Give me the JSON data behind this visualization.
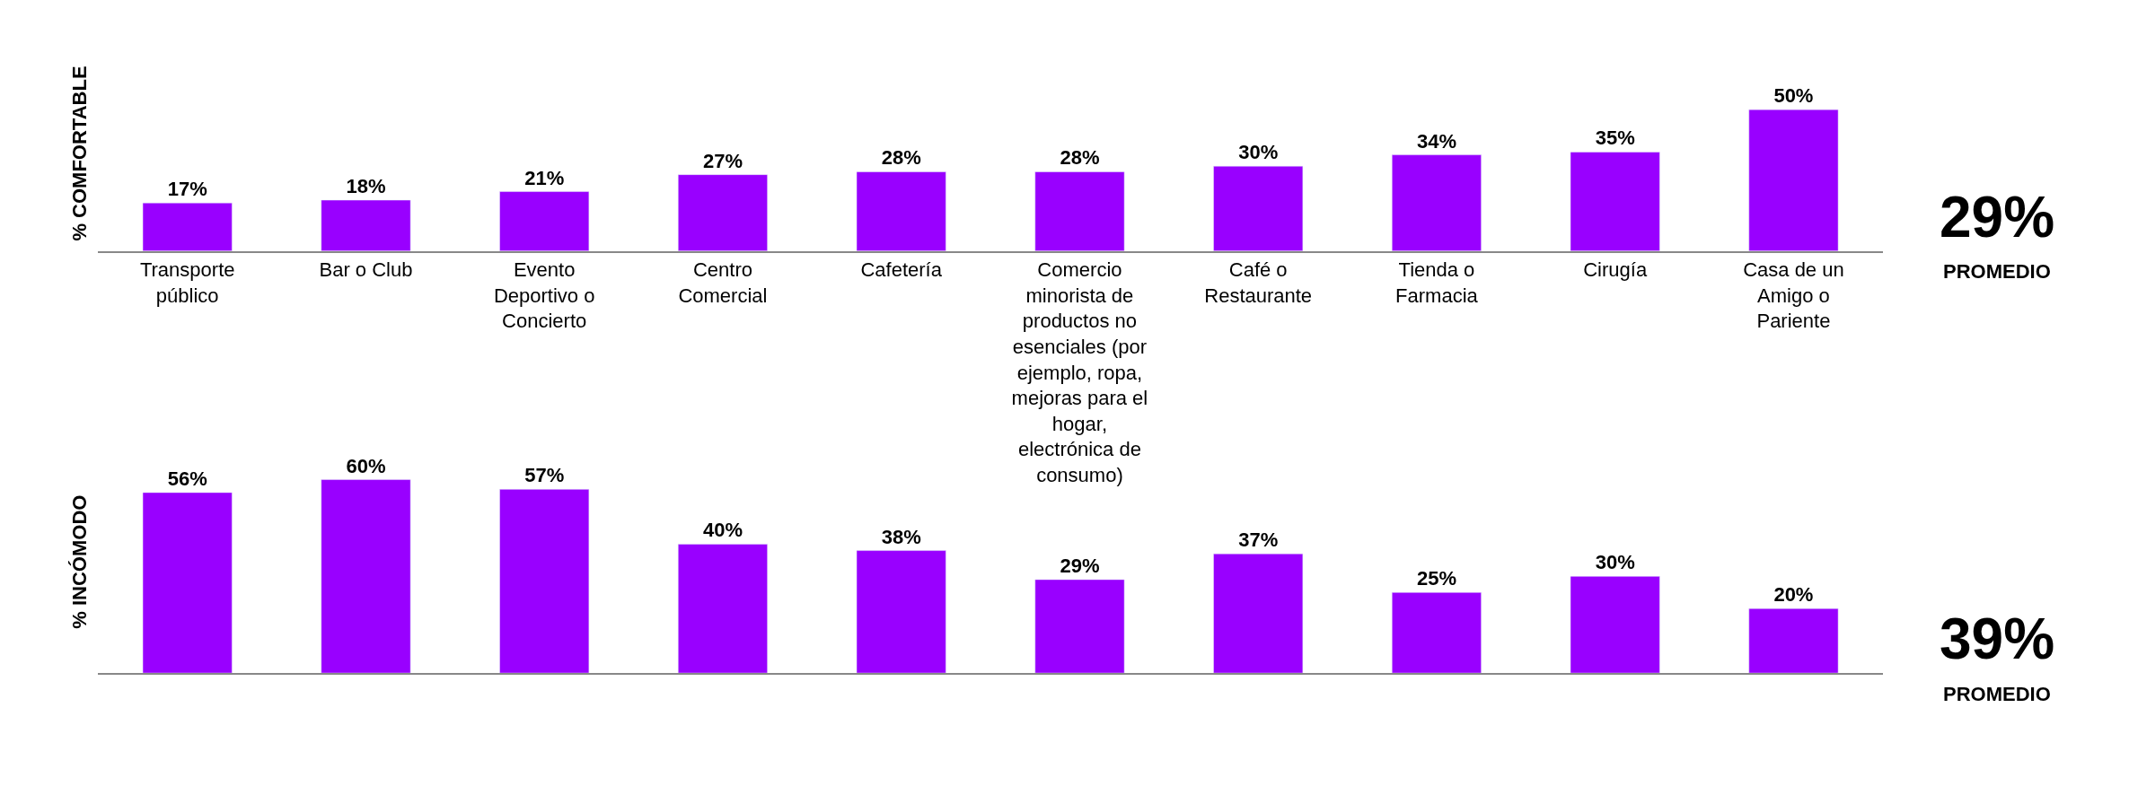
{
  "chart_data": [
    {
      "type": "bar",
      "ylabel": "% COMFORTABLE",
      "categories": [
        "Transporte público",
        "Bar o Club",
        "Evento Deportivo o Concierto",
        "Centro Comercial",
        "Cafetería",
        "Comercio minorista de productos no esenciales (por ejemplo, ropa, mejoras para el hogar, electrónica de consumo)",
        "Café o Restaurante",
        "Tienda o Farmacia",
        "Cirugía",
        "Casa de un Amigo o Pariente"
      ],
      "values": [
        17,
        18,
        21,
        27,
        28,
        28,
        30,
        34,
        35,
        50
      ],
      "value_labels": [
        "17%",
        "18%",
        "21%",
        "27%",
        "28%",
        "28%",
        "30%",
        "34%",
        "35%",
        "50%"
      ],
      "color": "#9900ff",
      "tick_labels": "x",
      "annotations": [
        "29%",
        "PROMEDIO"
      ]
    },
    {
      "type": "bar",
      "ylabel": "% INCÓMODO",
      "categories": [
        "Transporte público",
        "Bar o Club",
        "Evento Deportivo o Concierto",
        "Centro Comercial",
        "Cafetería",
        "Comercio minorista de productos no esenciales (por ejemplo, ropa, mejoras para el hogar, electrónica de consumo)",
        "Café o Restaurante",
        "Tienda o Farmacia",
        "Cirugía",
        "Casa de un Amigo o Pariente"
      ],
      "values": [
        56,
        60,
        57,
        40,
        38,
        29,
        37,
        25,
        30,
        20
      ],
      "value_labels": [
        "56%",
        "60%",
        "57%",
        "40%",
        "38%",
        "29%",
        "37%",
        "25%",
        "30%",
        "20%"
      ],
      "color": "#9900ff",
      "tick_labels": false,
      "annotations": [
        "39%",
        "PROMEDIO"
      ]
    }
  ]
}
